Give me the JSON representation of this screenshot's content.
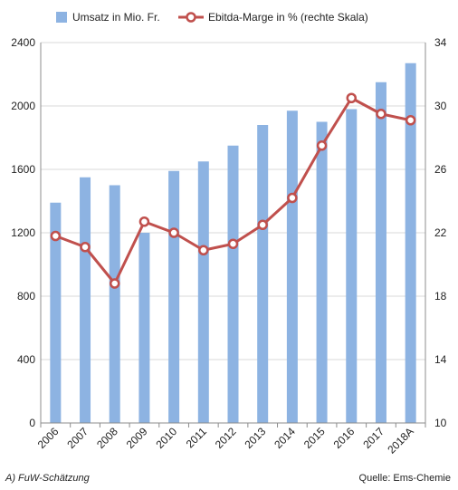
{
  "chart_data": {
    "type": "bar+line",
    "categories": [
      "2006",
      "2007",
      "2008",
      "2009",
      "2010",
      "2011",
      "2012",
      "2013",
      "2014",
      "2015",
      "2016",
      "2017",
      "2018A"
    ],
    "series": [
      {
        "name": "Umsatz in Mio. Fr.",
        "type": "bar",
        "axis": "left",
        "color": "#8db3e2",
        "values": [
          1390,
          1550,
          1500,
          1200,
          1590,
          1650,
          1750,
          1880,
          1970,
          1900,
          1980,
          2150,
          2270
        ]
      },
      {
        "name": "Ebitda-Marge in % (rechte Skala)",
        "type": "line",
        "axis": "right",
        "color": "#c0504d",
        "values": [
          21.8,
          21.1,
          18.8,
          22.7,
          22.0,
          20.9,
          21.3,
          22.5,
          24.2,
          27.5,
          30.5,
          29.5,
          29.1
        ]
      }
    ],
    "y_left": {
      "min": 0,
      "max": 2400,
      "ticks": [
        0,
        400,
        800,
        1200,
        1600,
        2000,
        2400
      ]
    },
    "y_right": {
      "min": 10,
      "max": 34,
      "ticks": [
        10,
        14,
        18,
        22,
        26,
        30,
        34
      ]
    },
    "grid": true,
    "legend": "top"
  },
  "footnote": "A) FuW-Schätzung",
  "source": "Quelle: Ems-Chemie"
}
